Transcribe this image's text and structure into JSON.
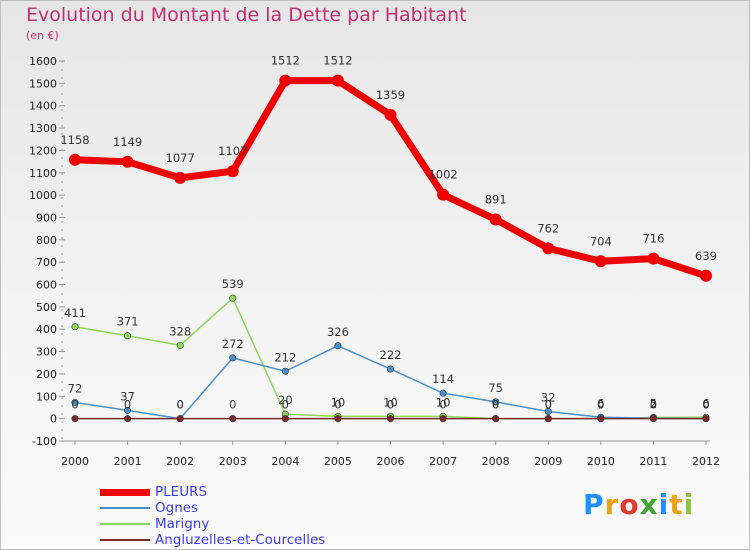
{
  "title": "Evolution du Montant de la Dette par Habitant",
  "subtitle": "(en €)",
  "logo": {
    "text": "Proxiti",
    "colors": [
      "#1e90ff",
      "#e8a317",
      "#e23a2e",
      "#3fa535",
      "#1e90ff",
      "#e8a317",
      "#8dc63f"
    ]
  },
  "chart_data": {
    "type": "line",
    "title": "Evolution du Montant de la Dette par Habitant",
    "subtitle": "(en €)",
    "xlabel": "",
    "ylabel": "",
    "x": [
      "2000",
      "2001",
      "2002",
      "2003",
      "2004",
      "2005",
      "2006",
      "2007",
      "2008",
      "2009",
      "2010",
      "2011",
      "2012"
    ],
    "ylim": [
      -100,
      1600
    ],
    "yticks": [
      -100,
      0,
      100,
      200,
      300,
      400,
      500,
      600,
      700,
      800,
      900,
      1000,
      1100,
      1200,
      1300,
      1400,
      1500,
      1600
    ],
    "grid": false,
    "legend_position": "bottom-left",
    "series": [
      {
        "name": "PLEURS",
        "color": "#ee0000",
        "values": [
          1158,
          1149,
          1077,
          1107,
          1512,
          1512,
          1359,
          1002,
          891,
          762,
          704,
          716,
          639
        ],
        "labels": [
          "1158",
          "1149",
          "1077",
          "1107",
          "1512",
          "1512",
          "1359",
          "1002",
          "891",
          "762",
          "704",
          "716",
          "639"
        ]
      },
      {
        "name": "Ognes",
        "color": "#4a90c8",
        "values": [
          72,
          37,
          0,
          272,
          212,
          326,
          222,
          114,
          75,
          32,
          6,
          2,
          0
        ],
        "labels": [
          "72",
          "37",
          "0",
          "272",
          "212",
          "326",
          "222",
          "114",
          "75",
          "32",
          "6",
          "2",
          "0"
        ]
      },
      {
        "name": "Marigny",
        "color": "#8fd65a",
        "values": [
          411,
          371,
          328,
          539,
          20,
          10,
          10,
          10,
          0,
          0,
          0,
          5,
          6
        ],
        "labels": [
          "411",
          "371",
          "328",
          "539",
          "20",
          "10",
          "10",
          "10",
          "0",
          "0",
          "0",
          "5",
          "6"
        ]
      },
      {
        "name": "Angluzelles-et-Courcelles",
        "color": "#7a2a2a",
        "values": [
          0,
          0,
          0,
          0,
          0,
          0,
          0,
          0,
          0,
          0,
          0,
          0,
          0
        ],
        "labels": [
          "0",
          "0",
          "0",
          "0",
          "0",
          "0",
          "0",
          "0",
          "0",
          "0",
          "0",
          "0",
          "0"
        ]
      }
    ]
  }
}
